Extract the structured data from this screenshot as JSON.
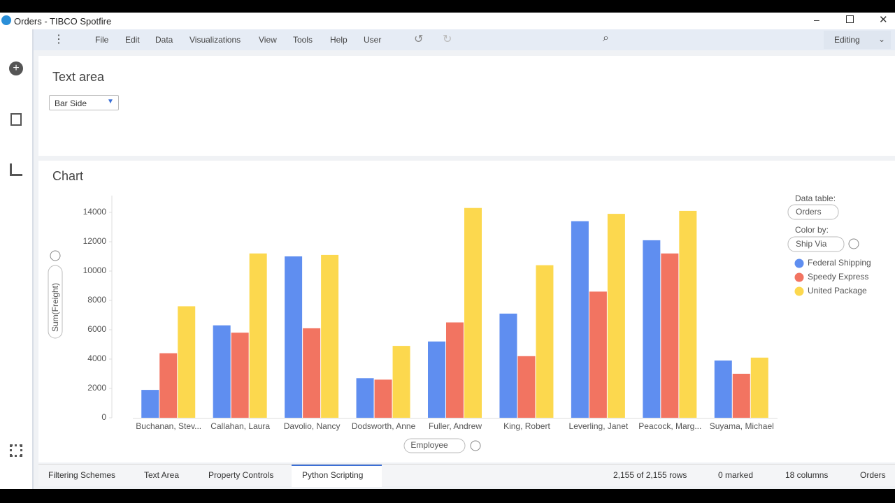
{
  "window_title": "Orders - TIBCO Spotfire",
  "menu": [
    "File",
    "Edit",
    "Data",
    "Visualizations",
    "View",
    "Tools",
    "Help",
    "User"
  ],
  "mode": "Editing",
  "text_area": {
    "title": "Text area",
    "dropdown": "Bar Side"
  },
  "legend_panel": {
    "data_table_label": "Data table:",
    "data_table": "Orders",
    "color_by_label": "Color by:",
    "color_by": "Ship Via"
  },
  "chart_data": {
    "type": "bar",
    "title": "Chart",
    "y_label": "Sum(Freight)",
    "x_label": "Employee",
    "categories": [
      "Buchanan, Stev...",
      "Callahan, Laura",
      "Davolio, Nancy",
      "Dodsworth, Anne",
      "Fuller, Andrew",
      "King, Robert",
      "Leverling, Janet",
      "Peacock, Marg...",
      "Suyama, Michael"
    ],
    "series": [
      {
        "name": "Federal Shipping",
        "color": "#5f8ef0",
        "values": [
          1900,
          6300,
          11000,
          2700,
          5200,
          7100,
          13400,
          12100,
          3900
        ]
      },
      {
        "name": "Speedy Express",
        "color": "#f27461",
        "values": [
          4400,
          5800,
          6100,
          2600,
          6500,
          4200,
          8600,
          11200,
          3000
        ]
      },
      {
        "name": "United Package",
        "color": "#fcd84e",
        "values": [
          7600,
          11200,
          11100,
          4900,
          14300,
          10400,
          13900,
          14100,
          4100
        ]
      }
    ],
    "ylim": [
      0,
      15000
    ],
    "yticks": [
      0,
      2000,
      4000,
      6000,
      8000,
      10000,
      12000,
      14000
    ],
    "grid": false
  },
  "tabs": [
    "Filtering Schemes",
    "Text Area",
    "Property Controls",
    "Python Scripting"
  ],
  "status": [
    "2,155 of 2,155 rows",
    "0 marked",
    "18 columns",
    "Orders"
  ]
}
